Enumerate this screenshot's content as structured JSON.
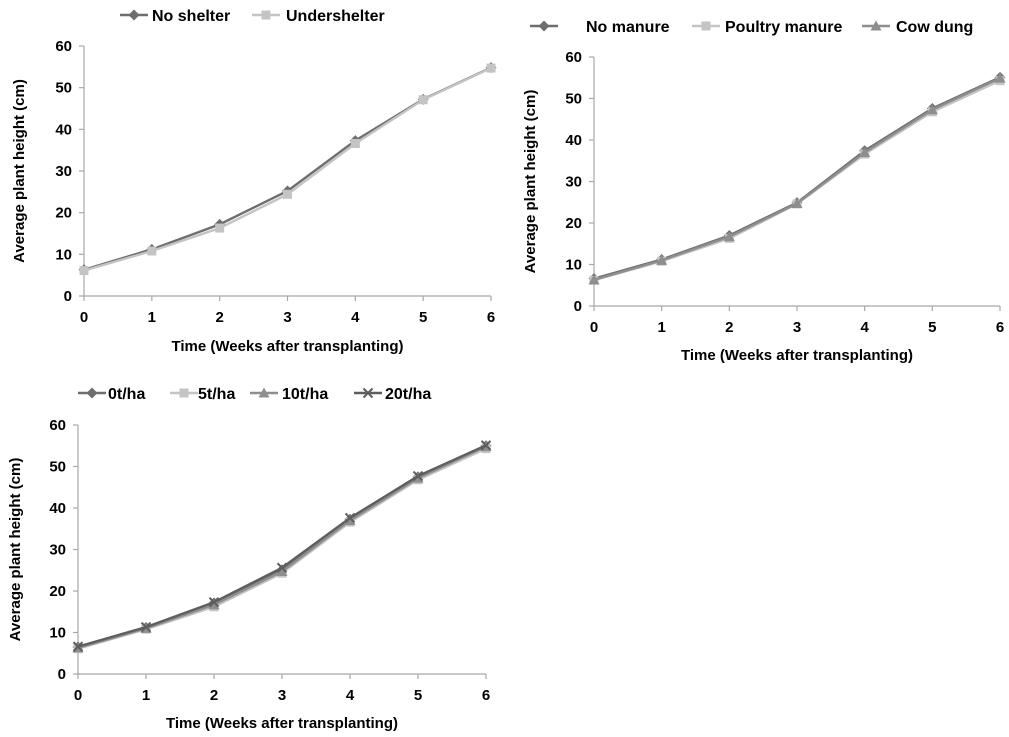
{
  "chart_data": [
    {
      "type": "line",
      "xlabel": "Time (Weeks after transplanting)",
      "ylabel": "Average plant height (cm)",
      "x": [
        0,
        1,
        2,
        3,
        4,
        5,
        6
      ],
      "xlim": [
        0,
        6
      ],
      "ylim": [
        0,
        60
      ],
      "yticks": [
        0,
        10,
        20,
        30,
        40,
        50,
        60
      ],
      "grid": false,
      "legend_position": "top",
      "series": [
        {
          "name": "No shelter",
          "marker": "diamond",
          "color": "#6e6e6e",
          "values": [
            6.3,
            11.2,
            17.2,
            25.2,
            37.3,
            47.2,
            54.8
          ]
        },
        {
          "name": "Undershelter",
          "marker": "square",
          "color": "#c4c4c4",
          "values": [
            6.1,
            10.8,
            16.3,
            24.4,
            36.6,
            47.1,
            54.7
          ]
        }
      ]
    },
    {
      "type": "line",
      "xlabel": "Time (Weeks after transplanting)",
      "ylabel": "Average plant height (cm)",
      "x": [
        0,
        1,
        2,
        3,
        4,
        5,
        6
      ],
      "xlim": [
        0,
        6
      ],
      "ylim": [
        0,
        60
      ],
      "yticks": [
        0,
        10,
        20,
        30,
        40,
        50,
        60
      ],
      "grid": false,
      "legend_position": "top",
      "series": [
        {
          "name": "No manure",
          "marker": "diamond",
          "color": "#6e6e6e",
          "values": [
            6.6,
            11.2,
            17.0,
            24.9,
            37.4,
            47.6,
            55.1
          ]
        },
        {
          "name": "Poultry manure",
          "marker": "square",
          "color": "#c4c4c4",
          "values": [
            6.2,
            10.8,
            16.3,
            24.6,
            36.6,
            46.8,
            54.3
          ]
        },
        {
          "name": "Cow dung",
          "marker": "triangle",
          "color": "#8e8e8e",
          "values": [
            6.3,
            11.0,
            16.7,
            24.7,
            37.0,
            47.3,
            54.9
          ]
        }
      ]
    },
    {
      "type": "line",
      "xlabel": "Time (Weeks after transplanting)",
      "ylabel": "Average plant height (cm)",
      "x": [
        0,
        1,
        2,
        3,
        4,
        5,
        6
      ],
      "xlim": [
        0,
        6
      ],
      "ylim": [
        0,
        60
      ],
      "yticks": [
        0,
        10,
        20,
        30,
        40,
        50,
        60
      ],
      "grid": false,
      "legend_position": "top",
      "series": [
        {
          "name": "0t/ha",
          "marker": "diamond",
          "color": "#6e6e6e",
          "values": [
            6.5,
            11.2,
            17.1,
            25.1,
            37.3,
            47.5,
            55.0
          ]
        },
        {
          "name": "5t/ha",
          "marker": "square",
          "color": "#c4c4c4",
          "values": [
            6.1,
            10.8,
            16.2,
            24.3,
            36.6,
            46.8,
            54.3
          ]
        },
        {
          "name": "10t/ha",
          "marker": "triangle",
          "color": "#8e8e8e",
          "values": [
            6.3,
            11.0,
            16.7,
            24.7,
            37.0,
            47.2,
            54.8
          ]
        },
        {
          "name": "20t/ha",
          "marker": "x",
          "color": "#5e5e5e",
          "values": [
            6.6,
            11.3,
            17.3,
            25.6,
            37.6,
            47.7,
            55.1
          ]
        }
      ]
    }
  ]
}
